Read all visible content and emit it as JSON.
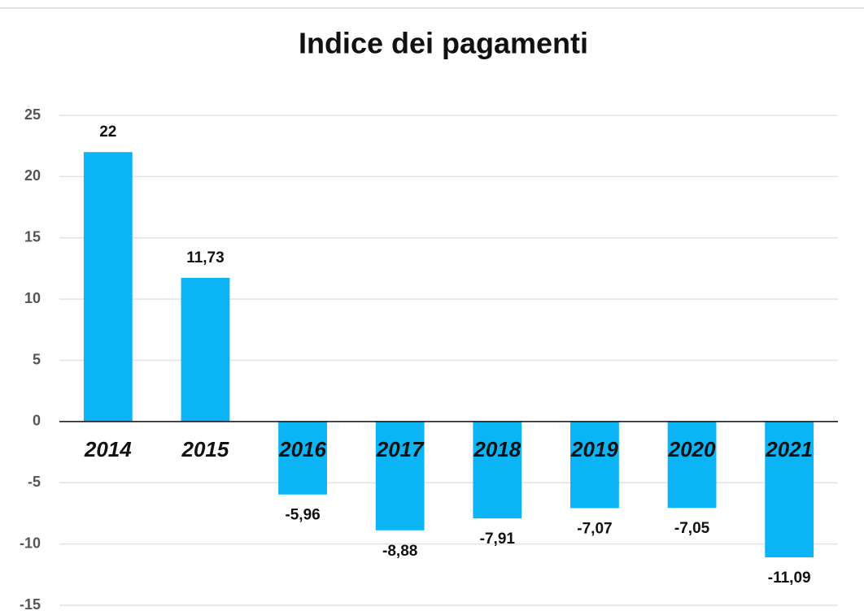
{
  "chart_data": {
    "type": "bar",
    "title": "Indice dei pagamenti",
    "categories": [
      "2014",
      "2015",
      "2016",
      "2017",
      "2018",
      "2019",
      "2020",
      "2021"
    ],
    "values": [
      22,
      11.73,
      -5.96,
      -8.88,
      -7.91,
      -7.07,
      -7.05,
      -11.09
    ],
    "value_labels": [
      "22",
      "11,73",
      "-5,96",
      "-8,88",
      "-7,91",
      "-7,07",
      "-7,05",
      "-11,09"
    ],
    "color": "#0bb4f4",
    "ylim": [
      -15,
      25
    ],
    "yticks": [
      -15,
      -10,
      -5,
      0,
      5,
      10,
      15,
      20,
      25
    ],
    "grid": true
  }
}
